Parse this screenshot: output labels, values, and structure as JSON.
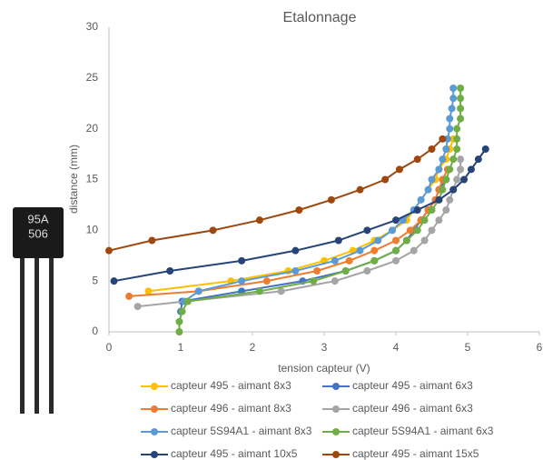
{
  "chart_data": {
    "type": "line",
    "title": "Etalonnage",
    "x_label": "tension capteur (V)",
    "y_label": "distance (mm)",
    "xlim": [
      0,
      6
    ],
    "xticks": [
      0,
      1,
      2,
      3,
      4,
      5,
      6
    ],
    "ylim": [
      0,
      30
    ],
    "yticks": [
      0,
      5,
      10,
      15,
      20,
      25,
      30
    ],
    "grid": false,
    "legend": "bottom",
    "series": [
      {
        "name": "capteur 495 - aimant 8x3",
        "color": "#ffc000",
        "x": [
          0.55,
          1.7,
          2.5,
          3.0,
          3.4,
          3.7,
          3.95,
          4.15,
          4.25,
          4.35,
          4.45,
          4.55,
          4.6,
          4.7,
          4.75,
          4.8
        ],
        "values": [
          4,
          5,
          6,
          7,
          8,
          9,
          10,
          11,
          12,
          13,
          14,
          15,
          16,
          17,
          18,
          19
        ]
      },
      {
        "name": "capteur 495 - aimant 6x3",
        "color": "#4472c4",
        "x": [
          1.0,
          1.02,
          1.85,
          2.7,
          3.3,
          3.7,
          4.0,
          4.15,
          4.25,
          4.35,
          4.45,
          4.55,
          4.6,
          4.7
        ],
        "values": [
          2,
          3,
          4,
          5,
          6,
          7,
          8,
          9,
          10,
          11,
          12,
          13,
          14,
          15
        ]
      },
      {
        "name": "capteur 496 - aimant 8x3",
        "color": "#ed7d31",
        "x": [
          0.28,
          1.25,
          2.2,
          2.9,
          3.35,
          3.7,
          4.0,
          4.2,
          4.35,
          4.45,
          4.55,
          4.6,
          4.65,
          4.72
        ],
        "values": [
          3.5,
          4,
          5,
          6,
          7,
          8,
          9,
          10,
          11,
          12,
          13,
          14,
          15,
          16
        ]
      },
      {
        "name": "capteur 496 - aimant 6x3",
        "color": "#a5a5a5",
        "x": [
          0.4,
          2.4,
          3.15,
          3.6,
          4.0,
          4.25,
          4.4,
          4.5,
          4.6,
          4.7,
          4.75,
          4.8,
          4.85,
          4.9,
          4.9
        ],
        "values": [
          2.5,
          4,
          5,
          6,
          7,
          8,
          9,
          10,
          11,
          12,
          13,
          14,
          15,
          16,
          17
        ]
      },
      {
        "name": "capteur 5S94A1 - aimant 8x3",
        "color": "#5b9bd5",
        "x": [
          1.05,
          1.25,
          1.85,
          2.6,
          3.15,
          3.5,
          3.75,
          3.95,
          4.1,
          4.25,
          4.35,
          4.45,
          4.5,
          4.6,
          4.65,
          4.7,
          4.72,
          4.75,
          4.75,
          4.78,
          4.8,
          4.8
        ],
        "values": [
          3,
          4,
          5,
          6,
          7,
          8,
          9,
          10,
          11,
          12,
          13,
          14,
          15,
          16,
          17,
          18,
          19,
          20,
          21,
          22,
          23,
          24
        ]
      },
      {
        "name": "capteur 5S94A1 - aimant 6x3",
        "color": "#70ad47",
        "x": [
          0.98,
          0.98,
          1.02,
          1.1,
          2.1,
          2.85,
          3.3,
          3.7,
          4.0,
          4.15,
          4.3,
          4.4,
          4.5,
          4.6,
          4.65,
          4.7,
          4.75,
          4.8,
          4.85,
          4.85,
          4.85,
          4.9,
          4.9,
          4.9,
          4.9
        ],
        "values": [
          0,
          1,
          2,
          3,
          4,
          5,
          6,
          7,
          8,
          9,
          10,
          11,
          12,
          13,
          14,
          15,
          16,
          17,
          18,
          19,
          20,
          21,
          22,
          23,
          24
        ]
      },
      {
        "name": "capteur 495 - aimant 10x5",
        "color": "#264478",
        "x": [
          0.07,
          0.85,
          1.85,
          2.6,
          3.2,
          3.6,
          4.0,
          4.3,
          4.6,
          4.8,
          4.95,
          5.05,
          5.15,
          5.25
        ],
        "values": [
          5,
          6,
          7,
          8,
          9,
          10,
          11,
          12,
          13,
          14,
          15,
          16,
          17,
          18
        ]
      },
      {
        "name": "capteur 495 - aimant 15x5",
        "color": "#9e480e",
        "x": [
          0,
          0.6,
          1.45,
          2.1,
          2.65,
          3.1,
          3.5,
          3.85,
          4.05,
          4.3,
          4.5,
          4.65
        ],
        "values": [
          8,
          9,
          10,
          11,
          12,
          13,
          14,
          15,
          16,
          17,
          18,
          19
        ]
      }
    ]
  },
  "image_text": [
    "95A",
    "506"
  ]
}
